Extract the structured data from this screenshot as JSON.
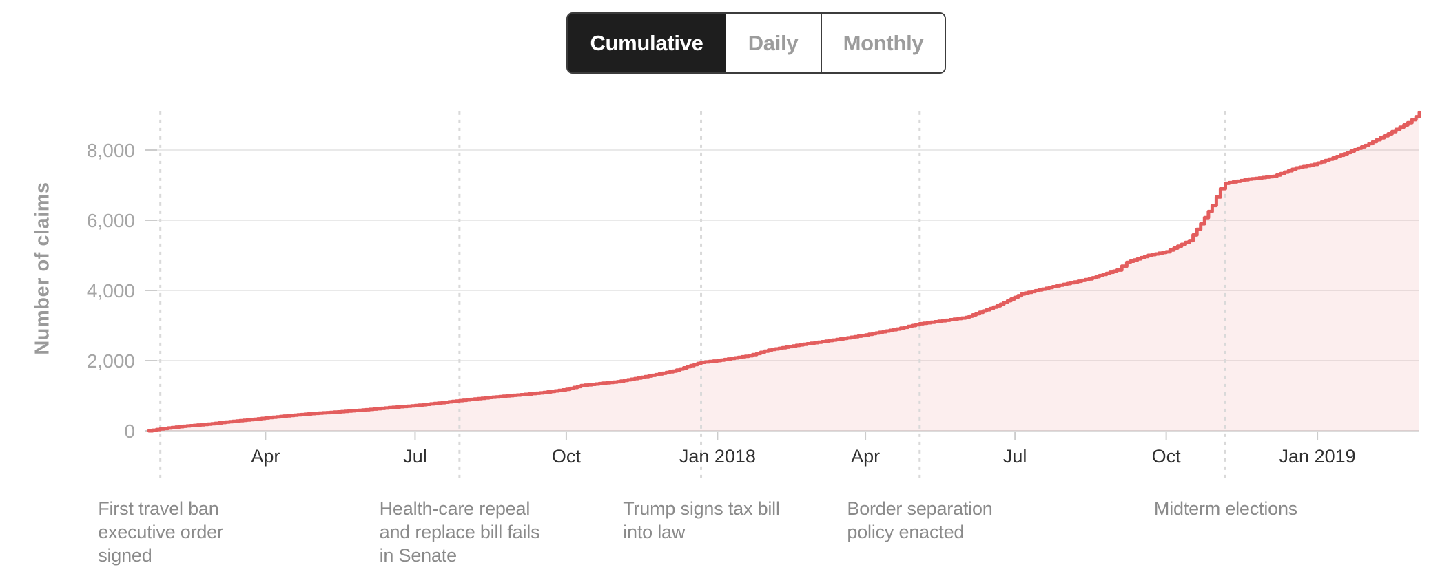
{
  "toolbar": {
    "options": [
      {
        "label": "Cumulative",
        "active": true
      },
      {
        "label": "Daily",
        "active": false
      },
      {
        "label": "Monthly",
        "active": false
      }
    ]
  },
  "colors": {
    "accent_red": "#e35d5d",
    "area_fill": "rgba(227,93,93,0.10)",
    "event_line": "#d9d9d9",
    "gridline": "#e9e9e9",
    "axis_line": "#dcdcdc",
    "tick": "#cccccc",
    "y_tick_text": "#a5a5a5",
    "x_tick_text": "#2f2f2f",
    "annotation_text": "#8a8a8a",
    "axis_title_text": "#9a9a9a",
    "toggle_active_bg": "#1e1e1e",
    "toggle_active_text": "#ffffff",
    "toggle_inactive_text": "#9c9c9c",
    "toggle_border": "#3c3c3c"
  },
  "chart_data": {
    "type": "area",
    "title": "",
    "xlabel": "",
    "ylabel": "Number of claims",
    "grid": true,
    "legend": "none",
    "x_range": [
      "2017-01-20",
      "2019-03-04"
    ],
    "ylim": [
      0,
      9100
    ],
    "y_ticks": [
      {
        "value": 0,
        "label": "0"
      },
      {
        "value": 2000,
        "label": "2,000"
      },
      {
        "value": 4000,
        "label": "4,000"
      },
      {
        "value": 6000,
        "label": "6,000"
      },
      {
        "value": 8000,
        "label": "8,000"
      }
    ],
    "x_ticks": [
      {
        "date": "2017-04-01",
        "label": "Apr"
      },
      {
        "date": "2017-07-01",
        "label": "Jul"
      },
      {
        "date": "2017-10-01",
        "label": "Oct"
      },
      {
        "date": "2018-01-01",
        "label": "Jan 2018"
      },
      {
        "date": "2018-04-01",
        "label": "Apr"
      },
      {
        "date": "2018-07-01",
        "label": "Jul"
      },
      {
        "date": "2018-10-01",
        "label": "Oct"
      },
      {
        "date": "2019-01-01",
        "label": "Jan 2019"
      }
    ],
    "events": [
      {
        "date": "2017-01-27",
        "label": "First travel ban executive order signed",
        "lines": [
          "First travel ban",
          "executive order",
          "signed"
        ]
      },
      {
        "date": "2017-07-28",
        "label": "Health-care repeal and replace bill fails in Senate",
        "lines": [
          "Health-care repeal",
          "and replace bill fails",
          "in Senate"
        ]
      },
      {
        "date": "2017-12-22",
        "label": "Trump signs tax bill into law",
        "lines": [
          "Trump signs tax bill",
          "into law"
        ]
      },
      {
        "date": "2018-05-04",
        "label": "Border separation policy enacted",
        "lines": [
          "Border separation",
          "policy enacted"
        ]
      },
      {
        "date": "2018-11-06",
        "label": "Midterm elections",
        "lines": [
          "Midterm elections"
        ]
      }
    ],
    "series": [
      {
        "name": "Cumulative number of claims",
        "color": "#e35d5d",
        "points": [
          [
            "2017-01-20",
            0
          ],
          [
            "2017-01-27",
            55
          ],
          [
            "2017-02-10",
            130
          ],
          [
            "2017-02-25",
            190
          ],
          [
            "2017-03-10",
            260
          ],
          [
            "2017-03-25",
            330
          ],
          [
            "2017-04-10",
            410
          ],
          [
            "2017-04-29",
            490
          ],
          [
            "2017-05-15",
            540
          ],
          [
            "2017-06-01",
            600
          ],
          [
            "2017-06-15",
            660
          ],
          [
            "2017-07-01",
            720
          ],
          [
            "2017-07-15",
            790
          ],
          [
            "2017-07-28",
            860
          ],
          [
            "2017-08-15",
            950
          ],
          [
            "2017-09-01",
            1020
          ],
          [
            "2017-09-15",
            1080
          ],
          [
            "2017-10-01",
            1180
          ],
          [
            "2017-10-10",
            1290
          ],
          [
            "2017-11-01",
            1400
          ],
          [
            "2017-11-20",
            1560
          ],
          [
            "2017-12-05",
            1700
          ],
          [
            "2017-12-22",
            1950
          ],
          [
            "2018-01-01",
            2000
          ],
          [
            "2018-01-20",
            2140
          ],
          [
            "2018-02-01",
            2300
          ],
          [
            "2018-02-20",
            2450
          ],
          [
            "2018-03-10",
            2570
          ],
          [
            "2018-04-01",
            2730
          ],
          [
            "2018-04-20",
            2900
          ],
          [
            "2018-05-04",
            3050
          ],
          [
            "2018-05-20",
            3150
          ],
          [
            "2018-06-01",
            3230
          ],
          [
            "2018-06-20",
            3560
          ],
          [
            "2018-07-05",
            3900
          ],
          [
            "2018-07-26",
            4130
          ],
          [
            "2018-08-15",
            4330
          ],
          [
            "2018-09-01",
            4580
          ],
          [
            "2018-09-07",
            4800
          ],
          [
            "2018-09-20",
            5000
          ],
          [
            "2018-10-01",
            5100
          ],
          [
            "2018-10-15",
            5420
          ],
          [
            "2018-10-22",
            5900
          ],
          [
            "2018-10-29",
            6420
          ],
          [
            "2018-11-03",
            6900
          ],
          [
            "2018-11-06",
            7050
          ],
          [
            "2018-11-20",
            7170
          ],
          [
            "2018-12-05",
            7250
          ],
          [
            "2018-12-19",
            7490
          ],
          [
            "2018-12-30",
            7590
          ],
          [
            "2019-01-15",
            7850
          ],
          [
            "2019-01-30",
            8130
          ],
          [
            "2019-02-13",
            8460
          ],
          [
            "2019-02-25",
            8780
          ],
          [
            "2019-03-02",
            8950
          ],
          [
            "2019-03-04",
            9070
          ]
        ]
      }
    ]
  }
}
